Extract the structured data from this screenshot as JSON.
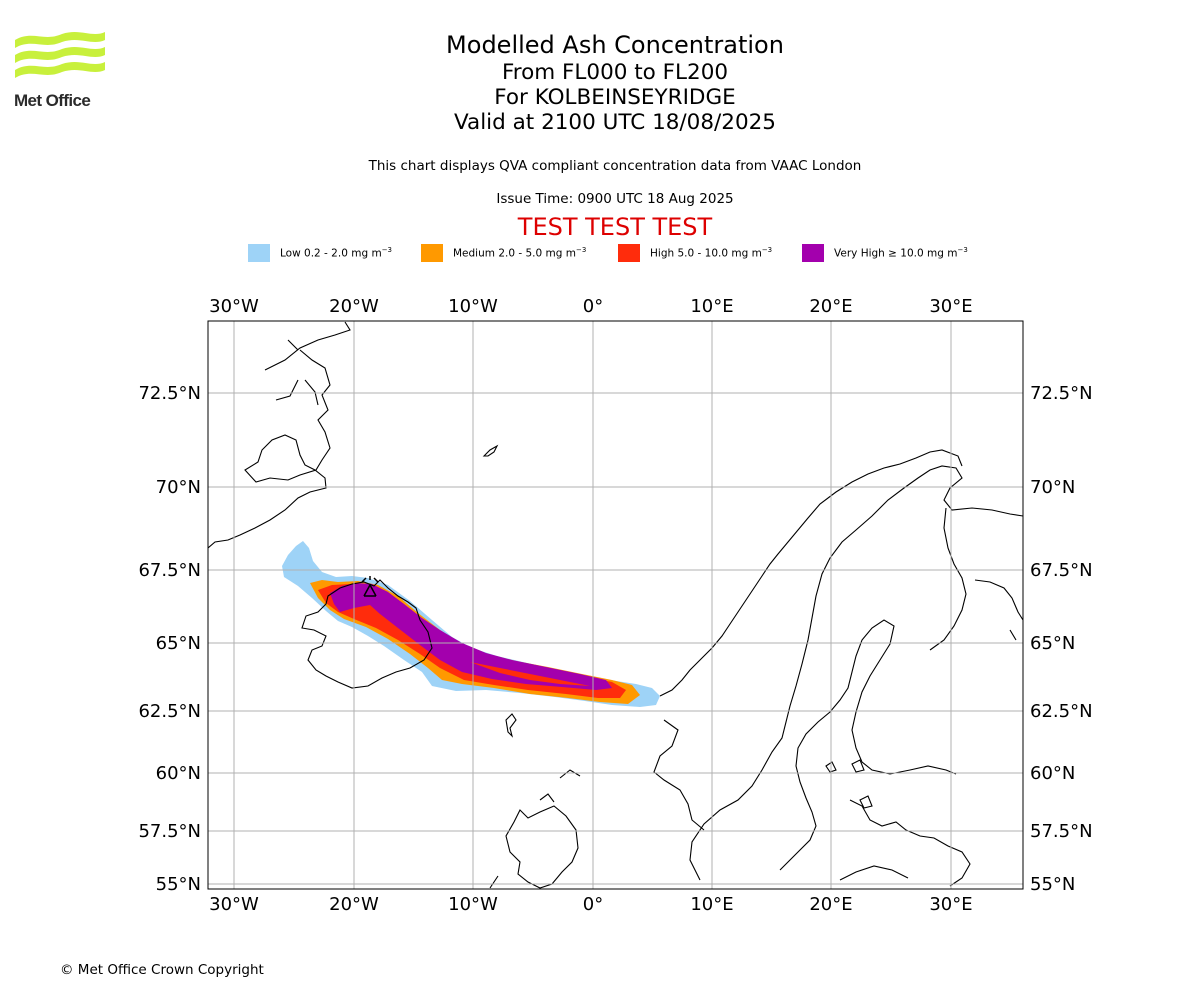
{
  "header": {
    "title": "Modelled Ash Concentration",
    "levels": "From FL000 to FL200",
    "location": "For KOLBEINSEYRIDGE",
    "valid": "Valid at 2100 UTC 18/08/2025",
    "subtitle": "This chart displays QVA compliant concentration data from VAAC London",
    "issue_time": "Issue Time: 0900 UTC 18 Aug 2025",
    "test_banner": "TEST TEST TEST"
  },
  "logo": {
    "text": "Met Office",
    "color": "#c8f03c"
  },
  "legend": [
    {
      "label": "Low 0.2 - 2.0 mg m",
      "sup": "−3",
      "color": "#9ed3f7"
    },
    {
      "label": "Medium 2.0 - 5.0 mg m",
      "sup": "−3",
      "color": "#ff9900"
    },
    {
      "label": "High 5.0 - 10.0 mg m",
      "sup": "−3",
      "color": "#ff2c0c"
    },
    {
      "label": "Very High  ≥  10.0 mg m",
      "sup": "−3",
      "color": "#a300ad"
    }
  ],
  "map": {
    "lon_ticks": [
      "30°W",
      "20°W",
      "10°W",
      "0°",
      "10°E",
      "20°E",
      "30°E"
    ],
    "lat_ticks": [
      "72.5°N",
      "70°N",
      "67.5°N",
      "65°N",
      "62.5°N",
      "60°N",
      "57.5°N",
      "55°N"
    ],
    "grid": true
  },
  "footer": {
    "copyright": "© Met Office Crown Copyright"
  }
}
